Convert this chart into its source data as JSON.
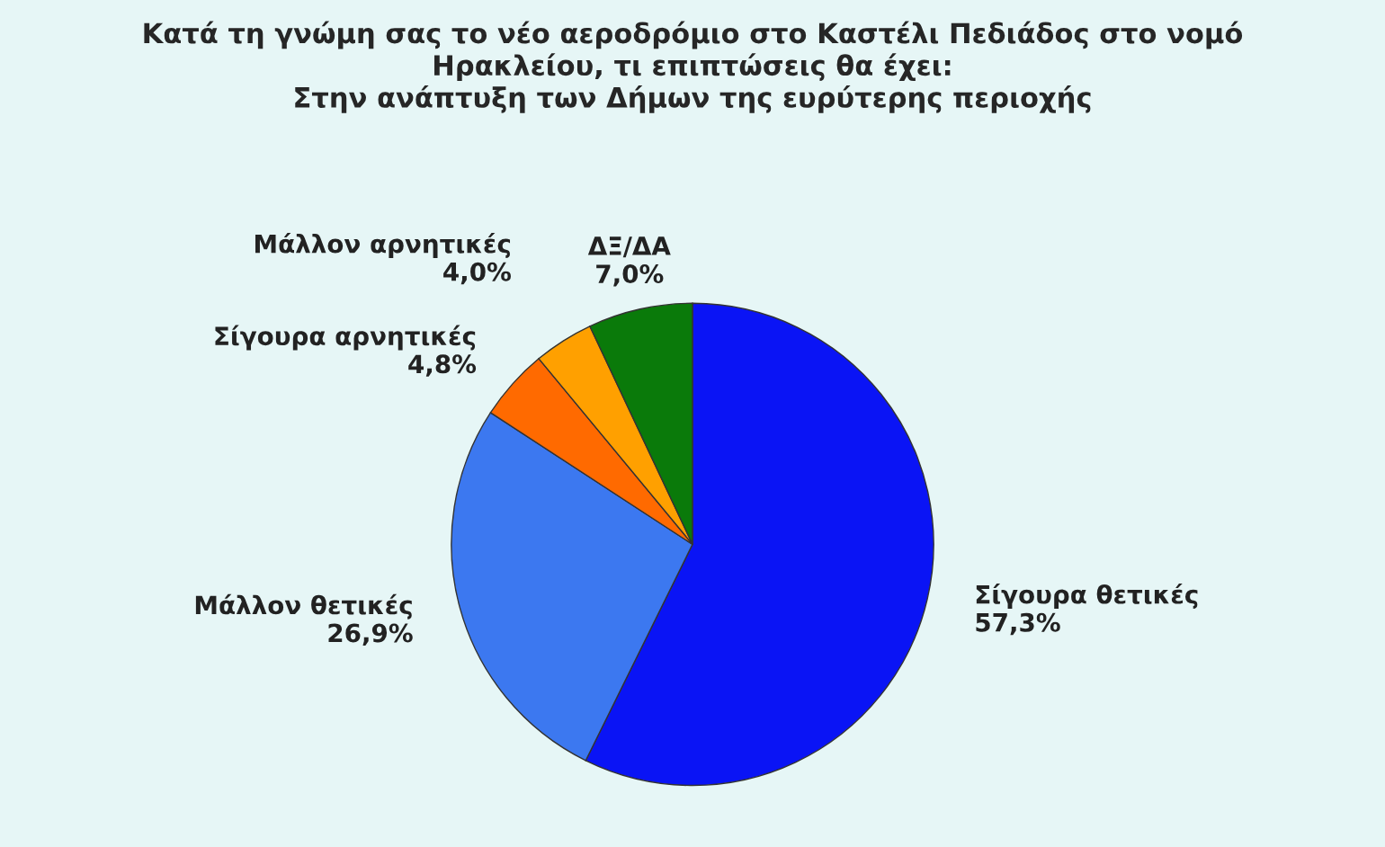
{
  "chart_data": {
    "type": "pie",
    "title": "Κατά τη γνώμη σας το νέο αεροδρόμιο στο Καστέλι Πεδιάδος στο νομό\nΗρακλείου, τι επιπτώσεις θα έχει:\nΣτην ανάπτυξη των Δήμων της ευρύτερης περιοχής",
    "categories": [
      "Σίγουρα θετικές",
      "Μάλλον θετικές",
      "Σίγουρα αρνητικές",
      "Μάλλον αρνητικές",
      "ΔΞ/ΔΑ"
    ],
    "values": [
      57.3,
      26.9,
      4.8,
      4.0,
      7.0
    ],
    "value_labels": [
      "57,3%",
      "26,9%",
      "4,8%",
      "4,0%",
      "7,0%"
    ],
    "colors": [
      "#0a14f5",
      "#3c78f0",
      "#ff6a00",
      "#ffa000",
      "#0a7a0a"
    ]
  }
}
